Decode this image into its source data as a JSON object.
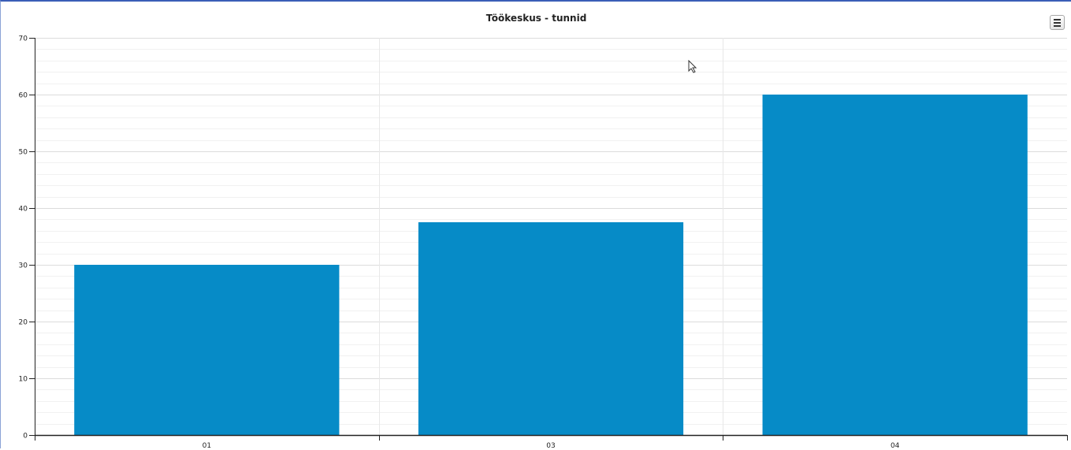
{
  "window": {
    "menu_icon": "hamburger-menu-icon",
    "cursor_icon": "mouse-pointer-icon"
  },
  "chart_data": {
    "type": "bar",
    "title": "Töökeskus - tunnid",
    "xlabel": "",
    "ylabel": "",
    "categories": [
      "01",
      "03",
      "04"
    ],
    "values": [
      30,
      37.5,
      60
    ],
    "ylim": [
      0,
      70
    ],
    "yticks": [
      0,
      10,
      20,
      30,
      40,
      50,
      60,
      70
    ],
    "minor_grid_step": 2,
    "grid": true,
    "legend": "none",
    "bar_color": "#068bc7",
    "gridline_color": "#e8e8e8"
  }
}
